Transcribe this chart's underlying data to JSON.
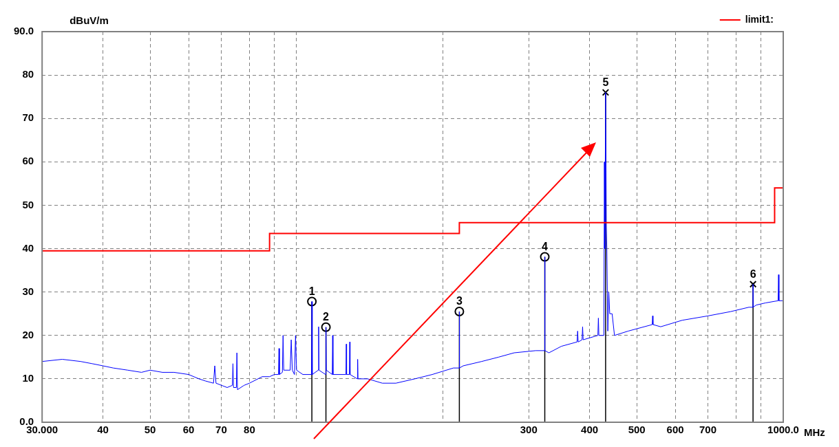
{
  "chart_data": {
    "type": "line",
    "xlabel": "MHz",
    "ylabel": "dBuV/m",
    "log": "x",
    "xlim": [
      30,
      1000
    ],
    "ylim": [
      0,
      90
    ],
    "xticks": [
      {
        "value": 30,
        "label": "30.000"
      },
      40,
      50,
      60,
      70,
      80,
      {
        "value": 90,
        "label": null
      },
      {
        "value": 100,
        "label": null
      },
      {
        "value": 200,
        "label": null
      },
      300,
      400,
      500,
      600,
      700,
      {
        "value": 800,
        "label": null
      },
      {
        "value": 900,
        "label": null
      },
      {
        "value": 1000,
        "label": "1000.0"
      }
    ],
    "yticks": [
      {
        "value": 0,
        "label": "0.0"
      },
      10,
      20,
      30,
      40,
      50,
      60,
      70,
      80,
      {
        "value": 90,
        "label": "90.0"
      }
    ],
    "grid": true,
    "legend": "top right",
    "line_style": "solid",
    "marker": "none",
    "series": [
      {
        "name": "limit1:",
        "type": "step",
        "color": "#ff0000",
        "x": [
          30,
          88,
          216,
          960,
          1000
        ],
        "values": [
          39.5,
          43.5,
          46,
          54,
          54
        ]
      },
      {
        "color": "#0000ff",
        "x": [
          30,
          33,
          36,
          38,
          40,
          42,
          45,
          48,
          50,
          53,
          56,
          60,
          63,
          65,
          67.5,
          67.9,
          68.3,
          72,
          73.8,
          74,
          74.2,
          75.2,
          75.4,
          75.6,
          78,
          80,
          85,
          88,
          90,
          91.8,
          92,
          92.2,
          93.5,
          93.8,
          94.1,
          97,
          97.5,
          98,
          99,
          99.5,
          100,
          103,
          107.3,
          107.5,
          107.7,
          110.8,
          111,
          111.2,
          114.7,
          114.9,
          115.1,
          118.4,
          118.6,
          118.8,
          126.3,
          126.5,
          126.7,
          128.4,
          128.6,
          128.8,
          133.3,
          133.5,
          133.7,
          140,
          150,
          160,
          175,
          190,
          210,
          215.8,
          216,
          216.2,
          220,
          240,
          260,
          280,
          310,
          323.4,
          323.6,
          323.8,
          330,
          350,
          377,
          378,
          379,
          386,
          387,
          388,
          416,
          417,
          418,
          428,
          429,
          430,
          431.5,
          433,
          434,
          436,
          438,
          440,
          445,
          450,
          480,
          538,
          539,
          540,
          560,
          620,
          700,
          780,
          850,
          866.6,
          866.8,
          867,
          880,
          920,
          976,
          978,
          980,
          1000
        ],
        "values": [
          14,
          14.5,
          14,
          13.5,
          13,
          12.5,
          12,
          11.5,
          12,
          11.5,
          11.5,
          11,
          10,
          9.5,
          9,
          13,
          9,
          8,
          8.5,
          13.5,
          8,
          8,
          16,
          7.5,
          8.5,
          9,
          10.5,
          10.5,
          11,
          11,
          17,
          11,
          11.5,
          20,
          12,
          12,
          19,
          12,
          11,
          20,
          12,
          11,
          11,
          27.8,
          11,
          12,
          22,
          12,
          11,
          21.9,
          12,
          11,
          20,
          11,
          11,
          18,
          11,
          11,
          18.5,
          11,
          10,
          14.5,
          10,
          10,
          9,
          9,
          10,
          11,
          12.5,
          12.5,
          25.5,
          12.5,
          13,
          14,
          15,
          16,
          16.5,
          16.5,
          38.1,
          16.5,
          16,
          17.5,
          18.5,
          21,
          18.5,
          19,
          22,
          19,
          20,
          24,
          20,
          20,
          60,
          40,
          76,
          45,
          40,
          21,
          30,
          25,
          25,
          20,
          21,
          22.5,
          24.5,
          22.5,
          22,
          23.5,
          24.5,
          25.5,
          26.5,
          26.5,
          31.8,
          26.5,
          27,
          27.5,
          28,
          34,
          28,
          28
        ]
      },
      {
        "type": "lollipop",
        "color": "#000000",
        "marker": "circle",
        "x": [
          107.5,
          114.9,
          216,
          323.6
        ],
        "values": [
          27.8,
          21.9,
          25.5,
          38.1
        ]
      },
      {
        "type": "lollipop",
        "color": "#000000",
        "marker": "cross",
        "x": [
          431.5,
          866.8
        ],
        "values": [
          76,
          31.8
        ]
      }
    ],
    "annotations": [
      {
        "text": "1",
        "x": 107.5,
        "y": 27.8
      },
      {
        "text": "2",
        "x": 114.9,
        "y": 21.9
      },
      {
        "text": "3",
        "x": 216,
        "y": 25.5
      },
      {
        "text": "4",
        "x": 323.6,
        "y": 38.1
      },
      {
        "text": "5",
        "x": 431.5,
        "y": 76
      },
      {
        "text": "6",
        "x": 866.8,
        "y": 31.8
      }
    ]
  }
}
